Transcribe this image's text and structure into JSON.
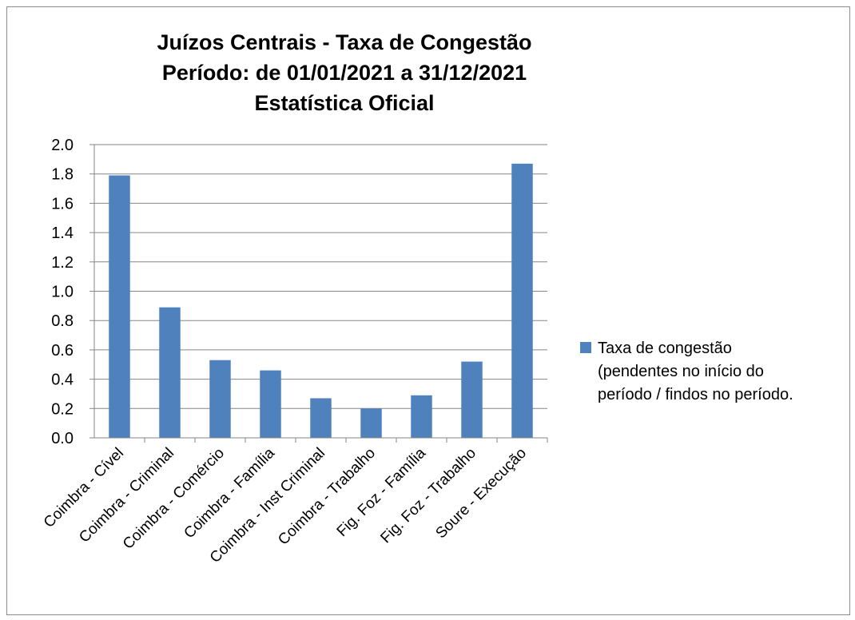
{
  "chart_data": {
    "type": "bar",
    "title": [
      "Juízos Centrais - Taxa de Congestão",
      "Período: de 01/01/2021 a 31/12/2021",
      "Estatística Oficial"
    ],
    "xlabel": "",
    "ylabel": "",
    "ylim": [
      0,
      2.0
    ],
    "ytick_labels": [
      "0.0",
      "0.2",
      "0.4",
      "0.6",
      "0.8",
      "1.0",
      "1.2",
      "1.4",
      "1.6",
      "1.8",
      "2.0"
    ],
    "categories": [
      "Coimbra - Cível",
      "Coimbra - Criminal",
      "Coimbra - Comércio",
      "Coimbra - Família",
      "Coimbra - Inst Criminal",
      "Coimbra - Trabalho",
      "Fig. Foz - Família",
      "Fig. Foz - Trabalho",
      "Soure - Execução"
    ],
    "series": [
      {
        "name": "Taxa de congestão (pendentes no início do período / findos no período.",
        "color": "#4f81bd",
        "values": [
          1.79,
          0.89,
          0.53,
          0.46,
          0.27,
          0.2,
          0.29,
          0.52,
          1.87
        ]
      }
    ],
    "grid": true,
    "legend_position": "right",
    "legend_lines": [
      "Taxa de congestão",
      "(pendentes no início do",
      "período / findos no período."
    ]
  }
}
